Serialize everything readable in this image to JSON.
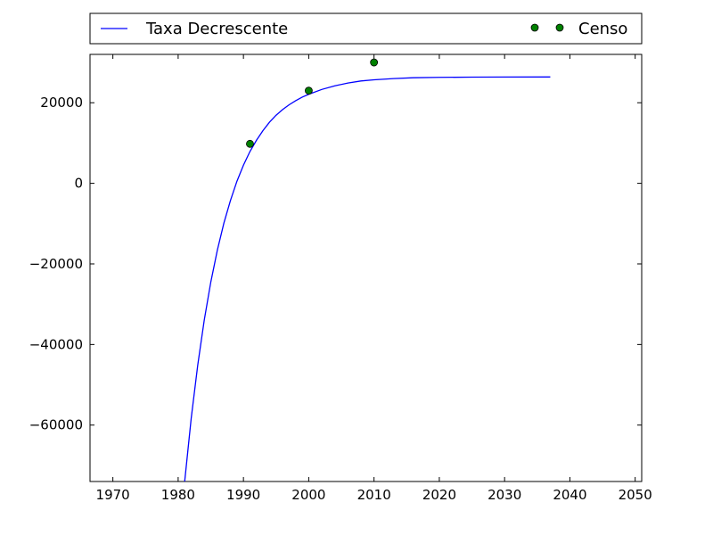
{
  "chart_data": {
    "type": "line",
    "title": "",
    "xlabel": "",
    "ylabel": "",
    "xlim": [
      1966.5,
      2051
    ],
    "ylim": [
      -74000,
      32000
    ],
    "grid": false,
    "legend_placement": "top, above axes, expanded",
    "x_ticks": [
      1970,
      1980,
      1990,
      2000,
      2010,
      2020,
      2030,
      2040,
      2050
    ],
    "x_tick_labels": [
      "1970",
      "1980",
      "1990",
      "2000",
      "2010",
      "2020",
      "2030",
      "2040",
      "2050"
    ],
    "y_ticks": [
      -60000,
      -40000,
      -20000,
      0,
      20000
    ],
    "y_tick_labels": [
      "−60000",
      "−40000",
      "−20000",
      "0",
      "20000"
    ],
    "series": [
      {
        "name": "Taxa Decrescente",
        "kind": "line",
        "color": "#0000ff",
        "x": [
          1981,
          1982,
          1983,
          1984,
          1985,
          1986,
          1987,
          1988,
          1989,
          1990,
          1991,
          1992,
          1993,
          1994,
          1995,
          1996,
          1997,
          1998,
          1999,
          2000,
          2002,
          2004,
          2006,
          2008,
          2010,
          2013,
          2016,
          2020,
          2025,
          2030,
          2037
        ],
        "y": [
          -74000,
          -58300,
          -45100,
          -33900,
          -24500,
          -16600,
          -9900,
          -4300,
          500,
          4500,
          7900,
          10700,
          13100,
          15200,
          16900,
          18300,
          19500,
          20500,
          21400,
          22100,
          23300,
          24200,
          24900,
          25400,
          25700,
          26000,
          26200,
          26300,
          26350,
          26380,
          26400
        ]
      },
      {
        "name": "Censo",
        "kind": "points",
        "color": "#008000",
        "x": [
          1991,
          2000,
          2010
        ],
        "y": [
          9800,
          23000,
          30000
        ]
      }
    ]
  }
}
